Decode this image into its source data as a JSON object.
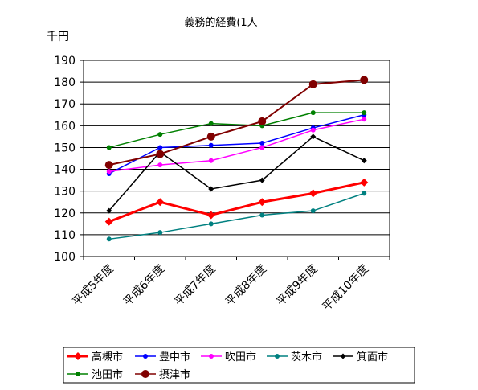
{
  "chart_data": {
    "type": "line",
    "title": "義務的経費(1人",
    "ylabel": "千円",
    "xlabel": "",
    "ylim": [
      100,
      190
    ],
    "yticks": [
      100,
      110,
      120,
      130,
      140,
      150,
      160,
      170,
      180,
      190
    ],
    "categories": [
      "平成5年度",
      "平成6年度",
      "平成7年度",
      "平成8年度",
      "平成9年度",
      "平成10年度"
    ],
    "grid": true,
    "legend_position": "bottom",
    "series": [
      {
        "name": "高槻市",
        "color": "#ff0000",
        "marker": "diamond",
        "values": [
          116,
          125,
          119,
          125,
          129,
          134
        ]
      },
      {
        "name": "豊中市",
        "color": "#0000ff",
        "marker": "circle",
        "values": [
          138,
          150,
          151,
          152,
          159,
          165
        ]
      },
      {
        "name": "吹田市",
        "color": "#ff00ff",
        "marker": "circle",
        "values": [
          139,
          142,
          144,
          150,
          158,
          163
        ]
      },
      {
        "name": "茨木市",
        "color": "#008080",
        "marker": "circle",
        "values": [
          108,
          111,
          115,
          119,
          121,
          129
        ]
      },
      {
        "name": "箕面市",
        "color": "#000000",
        "marker": "diamond",
        "values": [
          121,
          148,
          131,
          135,
          155,
          144
        ]
      },
      {
        "name": "池田市",
        "color": "#008000",
        "marker": "circle",
        "values": [
          150,
          156,
          161,
          160,
          166,
          166
        ]
      },
      {
        "name": "摂津市",
        "color": "#800000",
        "marker": "circle-large",
        "values": [
          142,
          147,
          155,
          162,
          179,
          181
        ]
      }
    ]
  }
}
